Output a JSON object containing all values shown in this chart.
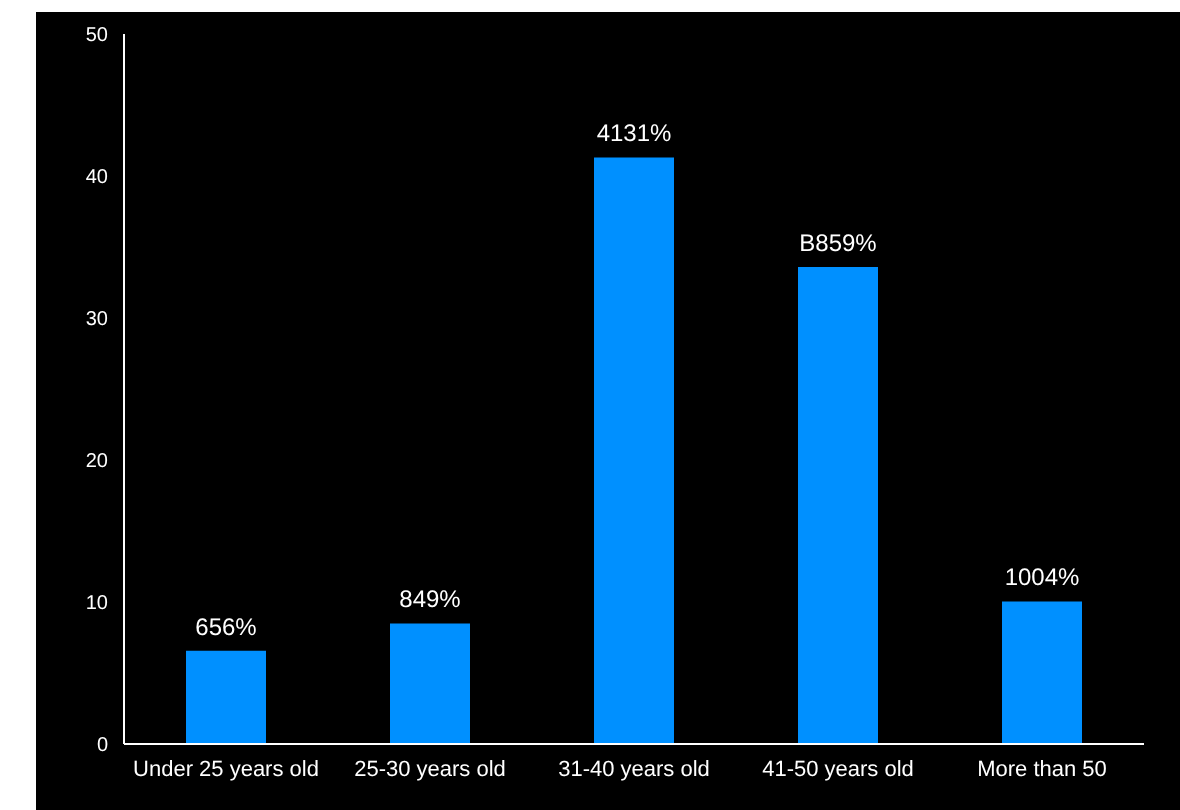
{
  "chart_data": {
    "type": "bar",
    "categories": [
      "Under 25 years old",
      "25-30 years old",
      "31-40 years old",
      "41-50 years old",
      "More than 50"
    ],
    "values": [
      6.56,
      8.49,
      41.31,
      33.59,
      10.04
    ],
    "value_labels": [
      "656%",
      "849%",
      "4131%",
      "B859%",
      "1004%"
    ],
    "color": "#0090ff",
    "ylim": [
      0,
      50
    ],
    "yticks": [
      0,
      10,
      20,
      30,
      40,
      50
    ],
    "grid": false
  }
}
